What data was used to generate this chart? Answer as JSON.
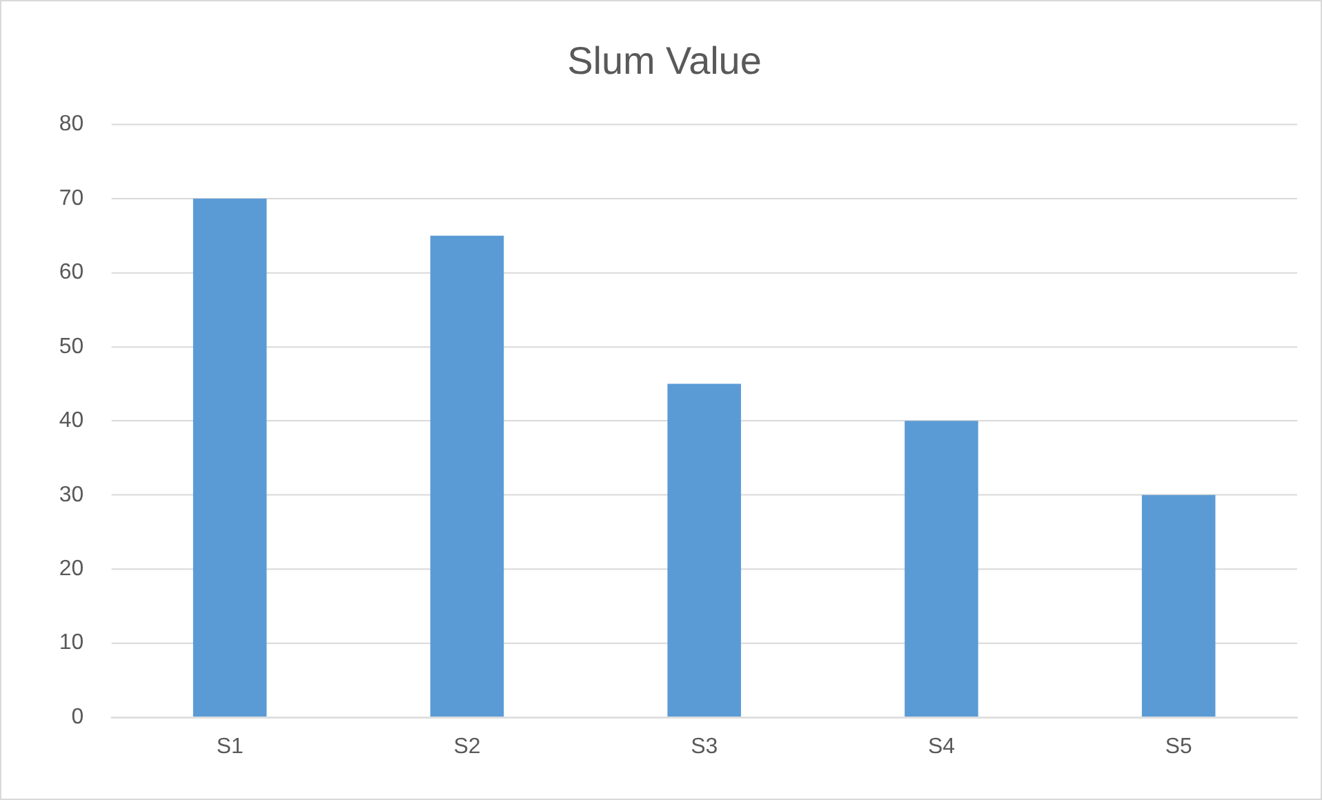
{
  "chart_data": {
    "type": "bar",
    "title": "Slum Value",
    "categories": [
      "S1",
      "S2",
      "S3",
      "S4",
      "S5"
    ],
    "values": [
      70,
      65,
      45,
      40,
      30
    ],
    "color": "#5b9bd5",
    "ylim": [
      0,
      80
    ],
    "yticks": [
      0,
      10,
      20,
      30,
      40,
      50,
      60,
      70,
      80
    ],
    "grid": "y",
    "legend": false
  }
}
